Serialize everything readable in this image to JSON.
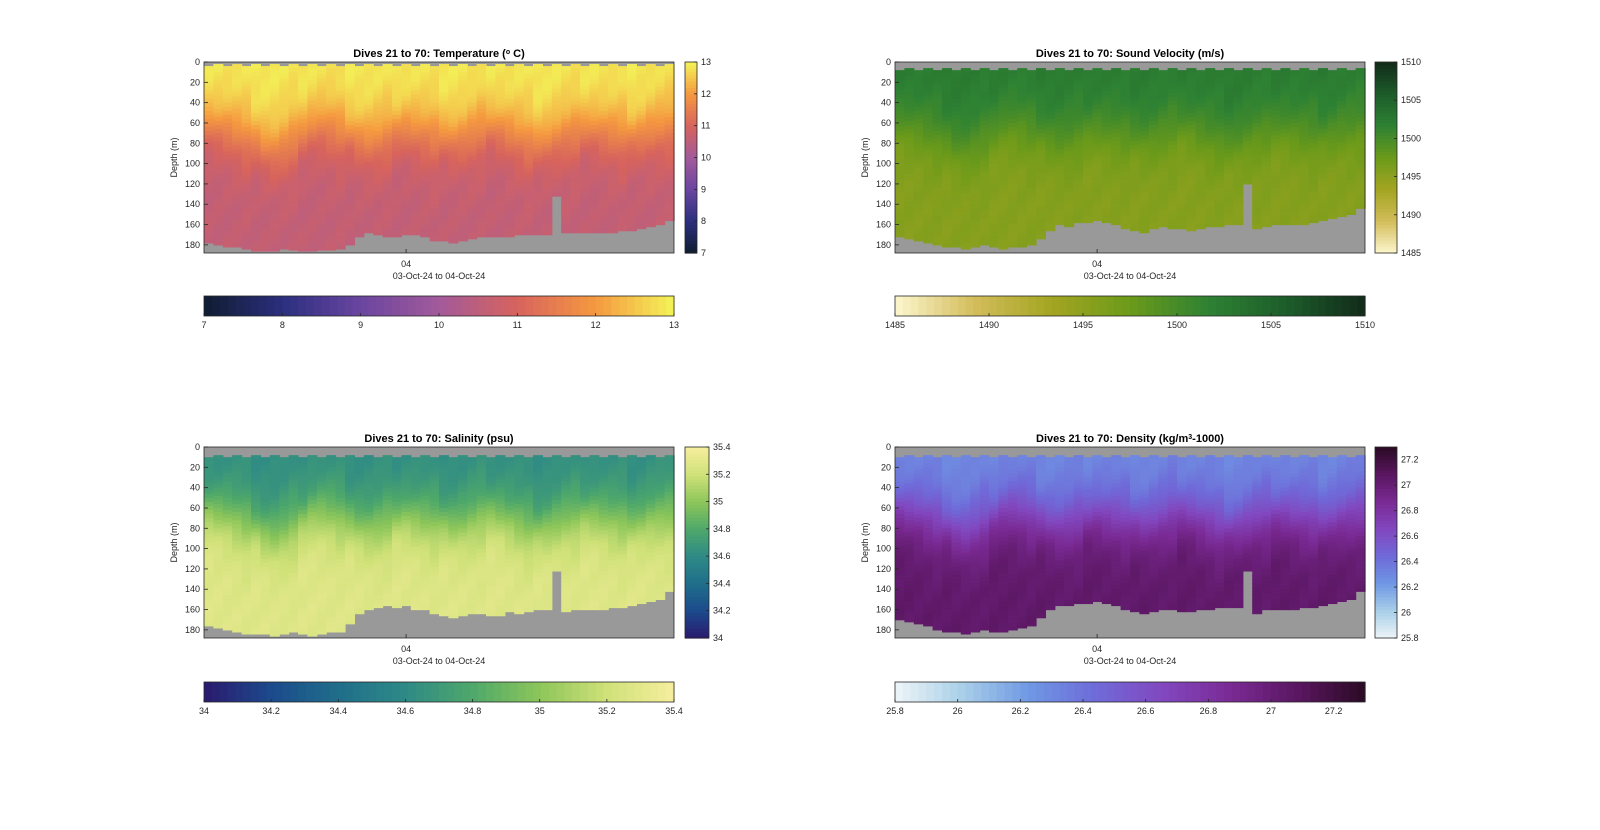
{
  "chart_data": [
    {
      "type": "heatmap",
      "title": "Dives 21 to 70: Temperature (",
      "title_sup": "o",
      "title_tail": " C)",
      "ylabel": "Depth (m)",
      "xtick_label": "04",
      "xlabel": "03-Oct-24 to 04-Oct-24",
      "y_ticks": [
        0,
        20,
        40,
        60,
        80,
        100,
        120,
        140,
        160,
        180
      ],
      "ylim": [
        0,
        188
      ],
      "clim": [
        7,
        13
      ],
      "colorbar_ticks": [
        7,
        8,
        9,
        10,
        11,
        12,
        13
      ],
      "colormap": [
        "#0f1c30",
        "#2b2f7e",
        "#6a45a0",
        "#a35a9a",
        "#d7635d",
        "#f59940",
        "#f3f358"
      ],
      "profile": {
        "mixed_layer_value": 12.9,
        "deep_value": 10.6,
        "thermocline_depths": [
          58,
          60,
          62,
          66,
          70,
          74,
          80,
          82,
          78,
          72,
          66,
          60,
          58,
          60,
          64,
          68,
          72,
          74,
          72,
          68,
          64,
          62,
          64,
          66,
          68,
          70,
          72,
          70,
          66,
          62,
          60,
          62,
          66,
          70,
          74,
          76,
          74,
          70,
          66,
          64,
          62,
          62,
          64,
          66,
          68,
          70,
          68,
          64,
          62,
          60
        ]
      },
      "surface_gap_m": 4,
      "seafloor_depths": [
        178,
        180,
        182,
        182,
        184,
        186,
        186,
        186,
        184,
        185,
        186,
        186,
        185,
        185,
        184,
        180,
        172,
        168,
        170,
        172,
        172,
        170,
        170,
        172,
        176,
        176,
        178,
        176,
        174,
        172,
        172,
        172,
        172,
        170,
        170,
        170,
        170,
        168,
        168,
        168,
        168,
        168,
        168,
        168,
        166,
        166,
        164,
        162,
        160,
        156
      ],
      "spike": {
        "index": 37,
        "depth": 132
      }
    },
    {
      "type": "heatmap",
      "title": "Dives 21 to 70: Sound Velocity (m/s)",
      "ylabel": "Depth (m)",
      "xtick_label": "04",
      "xlabel": "03-Oct-24 to 04-Oct-24",
      "y_ticks": [
        0,
        20,
        40,
        60,
        80,
        100,
        120,
        140,
        160,
        180
      ],
      "ylim": [
        0,
        188
      ],
      "clim": [
        1485,
        1510
      ],
      "colorbar_ticks": [
        1485,
        1490,
        1495,
        1500,
        1505,
        1510
      ],
      "colormap": [
        "#fdf7cf",
        "#d3bd5c",
        "#a3a521",
        "#6b9a1a",
        "#2e8233",
        "#1c5c2a",
        "#122b1a"
      ],
      "profile": {
        "mixed_layer_value": 1502.5,
        "deep_value": 1495.5,
        "thermocline_depths": [
          58,
          60,
          62,
          66,
          70,
          74,
          80,
          82,
          78,
          72,
          66,
          60,
          58,
          60,
          64,
          68,
          72,
          74,
          72,
          68,
          64,
          62,
          64,
          66,
          68,
          70,
          72,
          70,
          66,
          62,
          60,
          62,
          66,
          70,
          74,
          76,
          74,
          70,
          66,
          64,
          62,
          62,
          64,
          66,
          68,
          70,
          68,
          64,
          62,
          60
        ]
      },
      "surface_gap_m": 8,
      "seafloor_depths": [
        172,
        174,
        176,
        178,
        180,
        182,
        182,
        184,
        182,
        180,
        182,
        184,
        182,
        182,
        180,
        174,
        166,
        160,
        162,
        158,
        158,
        156,
        158,
        160,
        164,
        166,
        168,
        164,
        162,
        164,
        164,
        166,
        164,
        162,
        162,
        160,
        160,
        160,
        164,
        162,
        160,
        160,
        160,
        160,
        158,
        156,
        154,
        152,
        150,
        144
      ],
      "spike": {
        "index": 37,
        "depth": 120
      }
    },
    {
      "type": "heatmap",
      "title": "Dives 21 to 70: Salinity (psu)",
      "ylabel": "Depth (m)",
      "xtick_label": "04",
      "xlabel": "03-Oct-24 to 04-Oct-24",
      "y_ticks": [
        0,
        20,
        40,
        60,
        80,
        100,
        120,
        140,
        160,
        180
      ],
      "ylim": [
        0,
        188
      ],
      "clim": [
        34,
        35.4
      ],
      "colorbar_ticks": [
        34,
        34.2,
        34.4,
        34.6,
        34.8,
        35,
        35.2,
        35.4
      ],
      "colormap": [
        "#2a1a6e",
        "#1c4a8c",
        "#1f6e8a",
        "#2e8a86",
        "#4ea86a",
        "#8dc65a",
        "#cfe178",
        "#f6ee9e"
      ],
      "profile": {
        "mixed_layer_value": 34.62,
        "deep_value": 35.28,
        "thermocline_depths": [
          58,
          60,
          62,
          66,
          70,
          74,
          80,
          82,
          78,
          72,
          66,
          60,
          58,
          60,
          64,
          68,
          72,
          74,
          72,
          68,
          64,
          62,
          64,
          66,
          68,
          70,
          72,
          70,
          66,
          62,
          60,
          62,
          66,
          70,
          74,
          76,
          74,
          70,
          66,
          64,
          62,
          62,
          64,
          66,
          68,
          70,
          68,
          64,
          62,
          60
        ]
      },
      "surface_gap_m": 10,
      "seafloor_depths": [
        176,
        178,
        180,
        182,
        184,
        184,
        184,
        186,
        184,
        182,
        184,
        186,
        184,
        182,
        182,
        174,
        164,
        160,
        158,
        156,
        158,
        156,
        160,
        160,
        164,
        166,
        168,
        166,
        164,
        164,
        166,
        166,
        162,
        164,
        162,
        160,
        160,
        160,
        162,
        160,
        160,
        160,
        160,
        158,
        158,
        156,
        154,
        152,
        150,
        142
      ],
      "spike": {
        "index": 37,
        "depth": 122
      }
    },
    {
      "type": "heatmap",
      "title": "Dives 21 to 70: Density (kg/m",
      "title_sup": "3",
      "title_tail": "-1000)",
      "ylabel": "Depth (m)",
      "xtick_label": "04",
      "xlabel": "03-Oct-24 to 04-Oct-24",
      "y_ticks": [
        0,
        20,
        40,
        60,
        80,
        100,
        120,
        140,
        160,
        180
      ],
      "ylim": [
        0,
        188
      ],
      "clim": [
        25.8,
        27.3
      ],
      "colorbar_ticks": [
        25.8,
        26,
        26.2,
        26.4,
        26.6,
        26.8,
        27,
        27.2
      ],
      "colormap": [
        "#eef5f8",
        "#a9cfe8",
        "#6f98e4",
        "#6f6ad8",
        "#8247bf",
        "#7a2a94",
        "#5a1660",
        "#2b0b25"
      ],
      "profile": {
        "mixed_layer_value": 26.3,
        "deep_value": 27.05,
        "thermocline_depths": [
          58,
          60,
          62,
          66,
          70,
          74,
          80,
          82,
          78,
          72,
          66,
          60,
          58,
          60,
          64,
          68,
          72,
          74,
          72,
          68,
          64,
          62,
          64,
          66,
          68,
          70,
          72,
          70,
          66,
          62,
          60,
          62,
          66,
          70,
          74,
          76,
          74,
          70,
          66,
          64,
          62,
          62,
          64,
          66,
          68,
          70,
          68,
          64,
          62,
          60
        ]
      },
      "surface_gap_m": 10,
      "seafloor_depths": [
        170,
        172,
        174,
        176,
        180,
        182,
        182,
        184,
        182,
        180,
        182,
        182,
        180,
        178,
        176,
        168,
        160,
        156,
        156,
        154,
        154,
        152,
        154,
        156,
        160,
        162,
        164,
        162,
        160,
        160,
        162,
        162,
        160,
        160,
        158,
        158,
        158,
        158,
        164,
        160,
        160,
        160,
        160,
        158,
        158,
        156,
        154,
        152,
        150,
        142
      ],
      "spike": {
        "index": 37,
        "depth": 122
      }
    }
  ]
}
